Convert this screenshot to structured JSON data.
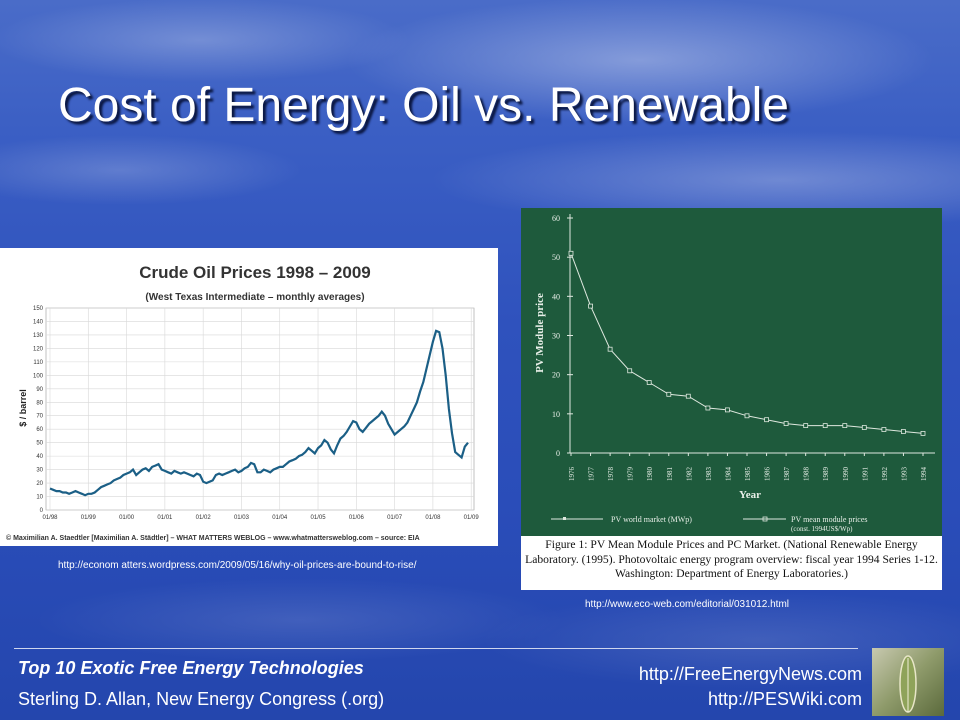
{
  "slide": {
    "title": "Cost of Energy: Oil vs. Renewable",
    "oil_source_url": "http://econom atters.wordpress.com/2009/05/16/why-oil-prices-are-bound-to-rise/",
    "pv_source_url": "http://www.eco-web.com/editorial/031012.html",
    "footer": {
      "series_title": "Top 10 Exotic Free Energy Technologies",
      "author": "Sterling D. Allan, New Energy Congress (.org)",
      "site1": "http://FreeEnergyNews.com",
      "site2": "http://PESWiki.com"
    },
    "colors": {
      "oil_line": "#1b5f86",
      "pv_background": "#1e5a3c",
      "title_text": "#ffffff"
    }
  },
  "chart_data": [
    {
      "type": "line",
      "title": "Crude Oil Prices 1998 – 2009",
      "subtitle": "(West Texas Intermediate – monthly averages)",
      "ylabel": "$ / barrel",
      "xlabel": "",
      "credit": "© Maximilian A. Staedtler [Maximilian A. Städtler] – WHAT MATTERS WEBLOG – www.whatmattersweblog.com – source: EIA",
      "ylim": [
        0,
        150
      ],
      "y_ticks": [
        0,
        10,
        20,
        30,
        40,
        50,
        60,
        70,
        80,
        90,
        100,
        110,
        120,
        130,
        140,
        150
      ],
      "x_tick_labels": [
        "01/98",
        "01/99",
        "01/00",
        "01/01",
        "01/02",
        "01/03",
        "01/04",
        "01/05",
        "01/06",
        "01/07",
        "01/08",
        "01/09"
      ],
      "grid": true,
      "series": [
        {
          "values": [
            16,
            15,
            14,
            14,
            13,
            13,
            12,
            13,
            14,
            13,
            12,
            11,
            12,
            12,
            13,
            15,
            17,
            18,
            19,
            20,
            22,
            23,
            24,
            26,
            27,
            28,
            30,
            26,
            28,
            30,
            31,
            29,
            32,
            33,
            34,
            30,
            29,
            28,
            27,
            29,
            28,
            27,
            28,
            27,
            26,
            25,
            27,
            26,
            21,
            20,
            21,
            22,
            26,
            27,
            26,
            27,
            28,
            29,
            30,
            28,
            29,
            31,
            32,
            35,
            34,
            28,
            28,
            30,
            29,
            28,
            30,
            31,
            32,
            32,
            34,
            36,
            37,
            38,
            40,
            41,
            43,
            46,
            44,
            42,
            46,
            48,
            52,
            50,
            45,
            42,
            48,
            53,
            55,
            58,
            62,
            66,
            65,
            60,
            58,
            61,
            64,
            66,
            68,
            70,
            73,
            70,
            64,
            60,
            56,
            58,
            60,
            62,
            65,
            70,
            75,
            80,
            88,
            95,
            105,
            115,
            125,
            133,
            132,
            120,
            100,
            75,
            57,
            43,
            41,
            39,
            47,
            50
          ]
        }
      ]
    },
    {
      "type": "line",
      "title": "",
      "ylabel": "PV Module price",
      "xlabel": "Year",
      "ylim": [
        0,
        60
      ],
      "y_ticks": [
        0,
        10,
        20,
        30,
        40,
        50,
        60
      ],
      "categories": [
        "1976",
        "1977",
        "1978",
        "1979",
        "1980",
        "1981",
        "1982",
        "1983",
        "1984",
        "1985",
        "1986",
        "1987",
        "1988",
        "1989",
        "1990",
        "1991",
        "1992",
        "1993",
        "1994"
      ],
      "legend": [
        "PV world market (MWp)",
        "PV mean module prices",
        "(const. 1994US$/Wp)"
      ],
      "caption": "Figure 1: PV Mean Module Prices and PC Market. (National Renewable Energy Laboratory. (1995). Photovoltaic energy program overview: fiscal year 1994 Series 1-12. Washington: Department of Energy Laboratories.)",
      "series": [
        {
          "name": "PV mean module prices",
          "values": [
            51,
            37.5,
            26.5,
            21,
            18,
            15,
            14.5,
            11.5,
            11,
            9.5,
            8.5,
            7.5,
            7,
            7,
            7,
            6.5,
            6,
            5.5,
            5
          ]
        }
      ]
    }
  ]
}
